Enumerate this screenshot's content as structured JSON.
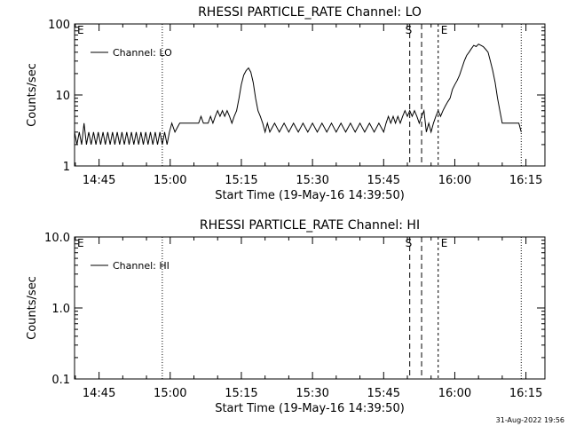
{
  "footer": {
    "timestamp": "31-Aug-2022 19:56"
  },
  "chart_data": [
    {
      "type": "line",
      "title": "RHESSI PARTICLE_RATE Channel: LO",
      "xlabel": "Start Time (19-May-16 14:39:50)",
      "ylabel": "Counts/sec",
      "yscale": "log",
      "ylim": [
        1,
        100
      ],
      "xlim": [
        "14:39:50",
        "16:19:00"
      ],
      "x_ticks": [
        "14:45",
        "15:00",
        "15:15",
        "15:30",
        "15:45",
        "16:00",
        "16:15"
      ],
      "y_ticks": [
        "1",
        "10",
        "100"
      ],
      "legend": "top-left",
      "grid": false,
      "series": [
        {
          "name": "Channel: LO",
          "x": [
            "14:39:50",
            "14:40:20",
            "14:40:50",
            "14:41:20",
            "14:41:50",
            "14:42:20",
            "14:42:50",
            "14:43:20",
            "14:43:50",
            "14:44:20",
            "14:44:50",
            "14:45:20",
            "14:45:50",
            "14:46:20",
            "14:46:50",
            "14:47:20",
            "14:47:50",
            "14:48:20",
            "14:48:50",
            "14:49:20",
            "14:49:50",
            "14:50:20",
            "14:50:50",
            "14:51:20",
            "14:51:50",
            "14:52:20",
            "14:52:50",
            "14:53:20",
            "14:53:50",
            "14:54:20",
            "14:54:50",
            "14:55:20",
            "14:55:50",
            "14:56:20",
            "14:56:50",
            "14:57:20",
            "14:57:50",
            "14:58:20",
            "14:58:50",
            "14:59:20",
            "14:59:50",
            "15:00:20",
            "15:01:00",
            "15:02:00",
            "15:03:00",
            "15:04:00",
            "15:04:30",
            "15:05:00",
            "15:05:30",
            "15:06:00",
            "15:06:30",
            "15:07:00",
            "15:07:30",
            "15:08:00",
            "15:08:30",
            "15:09:00",
            "15:09:30",
            "15:10:00",
            "15:10:30",
            "15:11:00",
            "15:11:30",
            "15:12:00",
            "15:12:30",
            "15:13:00",
            "15:13:30",
            "15:14:00",
            "15:14:30",
            "15:15:00",
            "15:15:30",
            "15:16:00",
            "15:16:30",
            "15:17:00",
            "15:17:30",
            "15:18:00",
            "15:18:30",
            "15:19:00",
            "15:19:30",
            "15:20:00",
            "15:20:30",
            "15:21:00",
            "15:22:00",
            "15:23:00",
            "15:24:00",
            "15:25:00",
            "15:26:00",
            "15:27:00",
            "15:28:00",
            "15:29:00",
            "15:30:00",
            "15:31:00",
            "15:32:00",
            "15:33:00",
            "15:34:00",
            "15:35:00",
            "15:36:00",
            "15:37:00",
            "15:38:00",
            "15:39:00",
            "15:40:00",
            "15:41:00",
            "15:42:00",
            "15:43:00",
            "15:44:00",
            "15:45:00",
            "15:45:30",
            "15:46:00",
            "15:46:30",
            "15:47:00",
            "15:47:30",
            "15:48:00",
            "15:48:30",
            "15:49:00",
            "15:49:30",
            "15:50:00",
            "15:50:30",
            "15:51:00",
            "15:51:30",
            "15:52:00",
            "15:52:30",
            "15:53:00",
            "15:53:30",
            "15:54:00",
            "15:54:30",
            "15:55:00",
            "15:55:30",
            "15:56:00",
            "15:56:30",
            "15:57:00",
            "15:57:30",
            "15:58:00",
            "15:58:30",
            "15:59:00",
            "15:59:30",
            "16:00:00",
            "16:00:30",
            "16:01:00",
            "16:01:30",
            "16:02:00",
            "16:02:30",
            "16:03:00",
            "16:03:30",
            "16:04:00",
            "16:04:30",
            "16:05:00",
            "16:05:30",
            "16:06:00",
            "16:06:30",
            "16:07:00",
            "16:07:30",
            "16:08:00",
            "16:08:30",
            "16:09:00",
            "16:09:30",
            "16:10:00",
            "16:10:30",
            "16:11:00",
            "16:11:30",
            "16:12:00",
            "16:12:30",
            "16:13:00",
            "16:13:30",
            "16:14:00"
          ],
          "y": [
            3,
            2,
            3,
            2,
            4,
            2,
            3,
            2,
            3,
            2,
            3,
            2,
            3,
            2,
            3,
            2,
            3,
            2,
            3,
            2,
            3,
            2,
            3,
            2,
            3,
            2,
            3,
            2,
            3,
            2,
            3,
            2,
            3,
            2,
            3,
            2,
            3,
            2,
            3,
            2,
            3,
            4,
            3,
            4,
            4,
            4,
            4,
            4,
            4,
            4,
            5,
            4,
            4,
            4,
            5,
            4,
            5,
            6,
            5,
            6,
            5,
            6,
            5,
            4,
            5,
            6,
            9,
            14,
            19,
            22,
            24,
            21,
            15,
            9,
            6,
            5,
            4,
            3,
            4,
            3,
            4,
            3,
            4,
            3,
            4,
            3,
            4,
            3,
            4,
            3,
            4,
            3,
            4,
            3,
            4,
            3,
            4,
            3,
            4,
            3,
            4,
            3,
            4,
            3,
            4,
            5,
            4,
            5,
            4,
            5,
            4,
            5,
            6,
            5,
            6,
            5,
            6,
            5,
            4,
            5,
            6,
            3,
            4,
            3,
            4,
            5,
            6,
            5,
            6,
            7,
            8,
            9,
            12,
            14,
            16,
            19,
            24,
            30,
            36,
            40,
            45,
            50,
            48,
            52,
            50,
            48,
            44,
            40,
            30,
            22,
            15,
            9,
            6,
            4,
            4,
            4,
            4,
            4,
            4,
            4,
            4,
            3
          ]
        }
      ],
      "annotations": {
        "markers": [
          "E",
          "S",
          "E"
        ],
        "vlines_dotted": [
          "14:58:20",
          "16:14:00"
        ],
        "vlines_dashed": [
          "15:50:30",
          "15:53:00"
        ],
        "vlines_solid": [
          "15:56:30"
        ]
      }
    },
    {
      "type": "line",
      "title": "RHESSI PARTICLE_RATE Channel: HI",
      "xlabel": "Start Time (19-May-16 14:39:50)",
      "ylabel": "Counts/sec",
      "yscale": "log",
      "ylim": [
        0.1,
        10
      ],
      "xlim": [
        "14:39:50",
        "16:19:00"
      ],
      "x_ticks": [
        "14:45",
        "15:00",
        "15:15",
        "15:30",
        "15:45",
        "16:00",
        "16:15"
      ],
      "y_ticks": [
        "0.1",
        "1.0",
        "10.0"
      ],
      "legend": "top-left",
      "grid": false,
      "series": [
        {
          "name": "Channel: HI",
          "x": [],
          "y": []
        }
      ],
      "annotations": {
        "markers": [
          "E",
          "S",
          "E"
        ],
        "vlines_dotted": [
          "14:58:20",
          "16:14:00"
        ],
        "vlines_dashed": [
          "15:50:30",
          "15:53:00"
        ],
        "vlines_solid": [
          "15:56:30"
        ]
      }
    }
  ]
}
